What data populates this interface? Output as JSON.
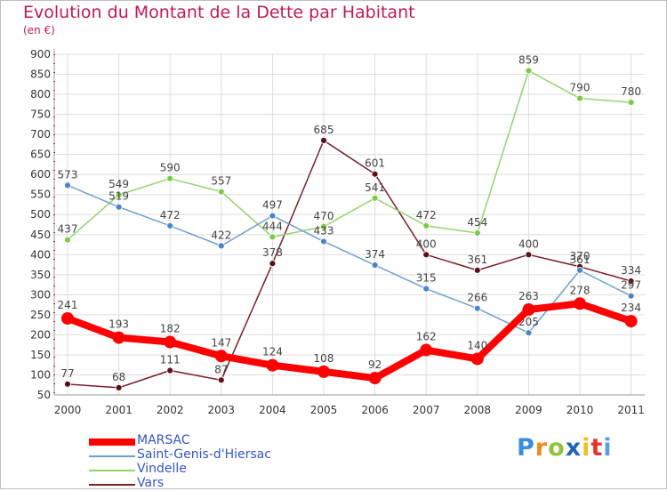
{
  "header": {
    "title": "Evolution du Montant de la Dette par Habitant",
    "subtitle": "(en €)"
  },
  "logo": {
    "letters": [
      "P",
      "r",
      "o",
      "x",
      "i",
      "t",
      "i"
    ],
    "colors": [
      "#3a8fd6",
      "#f08b1d",
      "#8fc23d",
      "#1e67b8",
      "#f0c01d",
      "#e2362f",
      "#5aa0e0"
    ]
  },
  "chart_data": {
    "type": "line",
    "x": [
      "2000",
      "2001",
      "2002",
      "2003",
      "2004",
      "2005",
      "2006",
      "2007",
      "2008",
      "2009",
      "2010",
      "2011"
    ],
    "ylim": [
      50,
      900
    ],
    "yticks": [
      50,
      100,
      150,
      200,
      250,
      300,
      350,
      400,
      450,
      500,
      550,
      600,
      650,
      700,
      750,
      800,
      850,
      900
    ],
    "grid": true,
    "legend": "bottom-left",
    "series": [
      {
        "name": "Vars",
        "color": "#7b1f2a",
        "marker": "#5c0f18",
        "values": [
          77,
          68,
          111,
          87,
          378,
          685,
          601,
          400,
          361,
          400,
          370,
          334
        ]
      },
      {
        "name": "Vindelle",
        "color": "#92d36e",
        "marker": "#7ccb47",
        "values": [
          437,
          549,
          590,
          557,
          444,
          470,
          541,
          472,
          454,
          859,
          790,
          780
        ]
      },
      {
        "name": "Saint-Genis-d'Hiersac",
        "color": "#6f9fd0",
        "marker": "#4a86c7",
        "values": [
          573,
          519,
          472,
          422,
          497,
          433,
          374,
          315,
          266,
          205,
          361,
          297
        ]
      },
      {
        "name": "MARSAC",
        "color": "#ff0000",
        "marker": "#ff0000",
        "values": [
          241,
          193,
          182,
          147,
          124,
          108,
          92,
          162,
          140,
          263,
          278,
          234
        ]
      }
    ]
  }
}
